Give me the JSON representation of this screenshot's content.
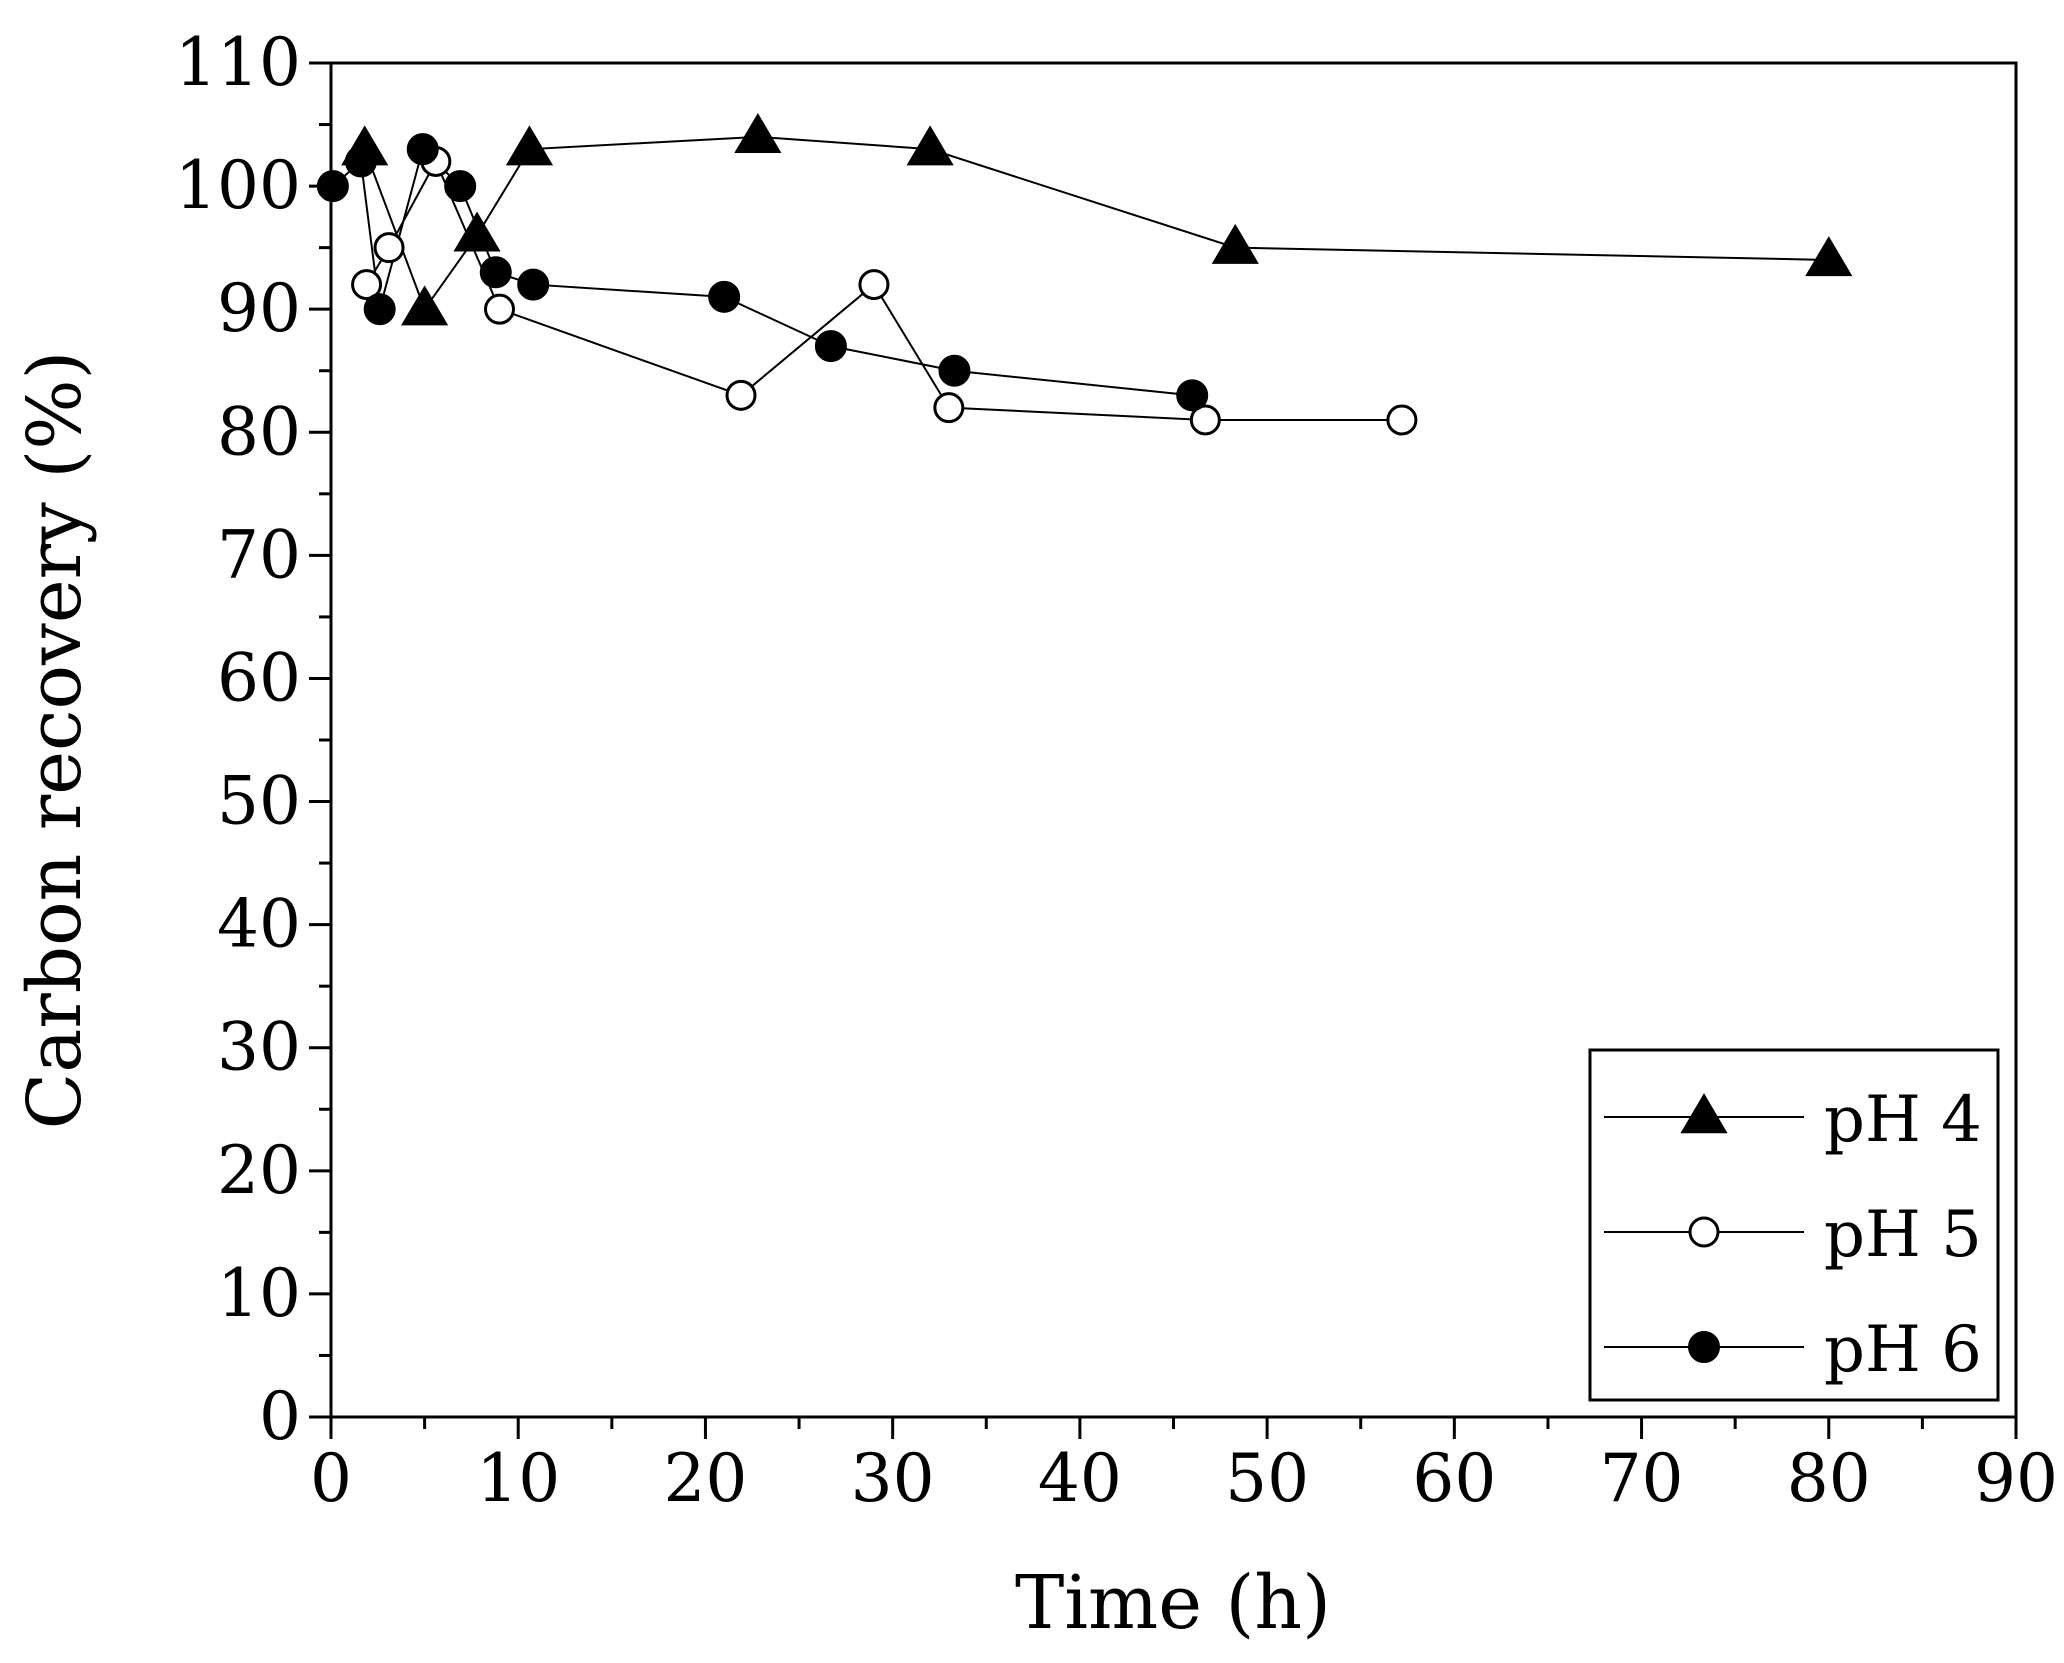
{
  "chart_data": {
    "type": "line",
    "title": "",
    "xlabel": "Time (h)",
    "ylabel": "Carbon recovery (%)",
    "xlim": [
      0,
      90
    ],
    "ylim": [
      0,
      110
    ],
    "xticks": [
      0,
      10,
      20,
      30,
      40,
      50,
      60,
      70,
      80,
      90
    ],
    "yticks": [
      0,
      10,
      20,
      30,
      40,
      50,
      60,
      70,
      80,
      90,
      100,
      110
    ],
    "xtick_labels": [
      "0",
      "10",
      "20",
      "30",
      "40",
      "50",
      "60",
      "70",
      "80",
      "90"
    ],
    "ytick_labels": [
      "0",
      "10",
      "20",
      "30",
      "40",
      "50",
      "60",
      "70",
      "80",
      "90",
      "100",
      "110"
    ],
    "grid": false,
    "legend": {
      "position": "bottom-right"
    },
    "series": [
      {
        "name": "pH 4",
        "marker": "filled-triangle",
        "color": "#000000",
        "x": [
          1.8,
          5.0,
          7.8,
          10.6,
          22.8,
          32.0,
          48.3,
          80.0
        ],
        "y": [
          103,
          90,
          96,
          103,
          104,
          103,
          95,
          94
        ]
      },
      {
        "name": "pH 5",
        "marker": "open-circle",
        "color": "#000000",
        "x": [
          1.9,
          3.1,
          5.6,
          9.0,
          21.9,
          29.0,
          33.0,
          46.7,
          57.2
        ],
        "y": [
          92,
          95,
          102,
          90,
          83,
          92,
          82,
          81,
          81
        ]
      },
      {
        "name": "pH 6",
        "marker": "filled-circle",
        "color": "#000000",
        "x": [
          0.1,
          1.6,
          2.6,
          4.9,
          6.9,
          8.8,
          10.8,
          21.0,
          26.7,
          33.3,
          46.0
        ],
        "y": [
          100,
          102,
          90,
          103,
          100,
          93,
          92,
          91,
          87,
          85,
          83
        ]
      }
    ]
  }
}
